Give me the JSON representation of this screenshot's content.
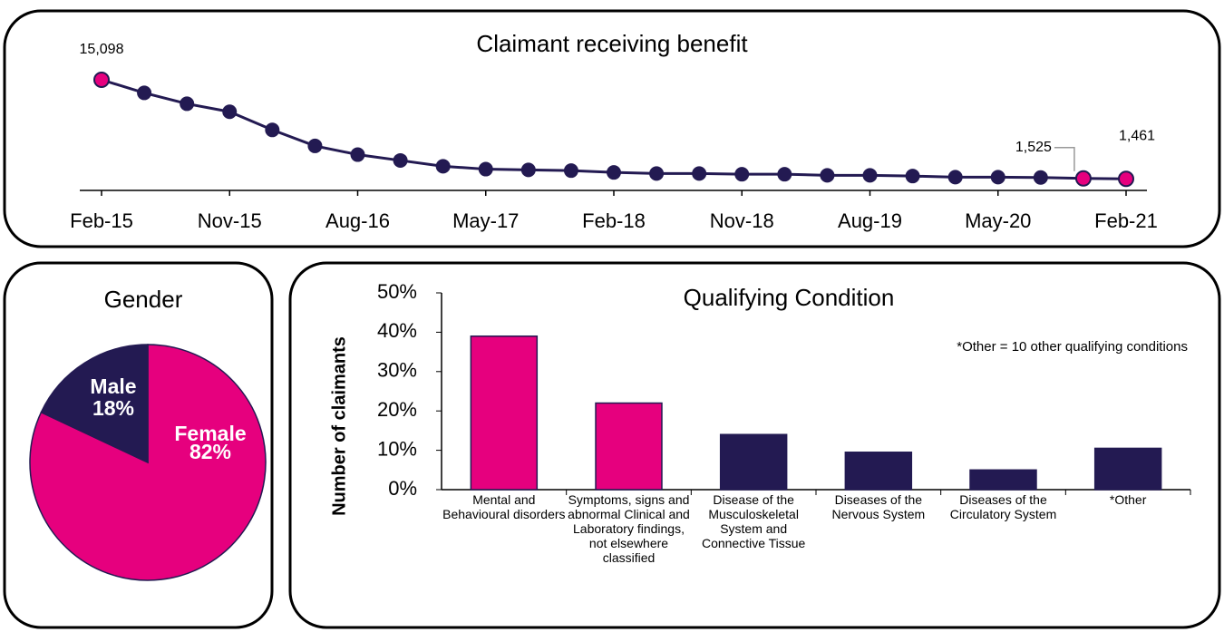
{
  "chart_data": [
    {
      "type": "line",
      "title": "Claimant receiving benefit",
      "categories": [
        "Feb-15",
        null,
        null,
        "Nov-15",
        null,
        null,
        "Aug-16",
        null,
        null,
        "May-17",
        null,
        null,
        "Feb-18",
        null,
        null,
        "Nov-18",
        null,
        null,
        "Aug-19",
        null,
        null,
        "May-20",
        null,
        null,
        "Feb-21"
      ],
      "values": [
        15098,
        13300,
        11800,
        10700,
        8200,
        6000,
        4800,
        4000,
        3200,
        2800,
        2700,
        2600,
        2350,
        2200,
        2200,
        2100,
        2100,
        1950,
        1950,
        1850,
        1700,
        1700,
        1650,
        1525,
        1461
      ],
      "value_labels": [
        "15,098",
        null,
        null,
        null,
        null,
        null,
        null,
        null,
        null,
        null,
        null,
        null,
        null,
        null,
        null,
        null,
        null,
        null,
        null,
        null,
        null,
        null,
        null,
        "1,525",
        "1,461"
      ],
      "color": "#231a52",
      "highlight_color": "#e6007e"
    },
    {
      "type": "pie",
      "title": "Gender",
      "categories": [
        "Female",
        "Male"
      ],
      "values": [
        82,
        18
      ],
      "value_labels": [
        "82%",
        "18%"
      ],
      "colors": [
        "#e6007e",
        "#231a52"
      ]
    },
    {
      "type": "bar",
      "title": "Qualifying Condition",
      "ylabel": "Number of claimants",
      "annotation": "*Other = 10 other qualifying conditions",
      "categories": [
        "Mental and Behavioural disorders",
        "Symptoms, signs and abnormal Clinical and Laboratory findings, not elsewhere classified",
        "Disease of the Musculoskeletal System and Connective Tissue",
        "Diseases of the Nervous System",
        "Diseases of the Circulatory System",
        "*Other"
      ],
      "values": [
        39,
        22,
        14,
        9.5,
        5,
        10.5
      ],
      "colors": [
        "#e6007e",
        "#e6007e",
        "#231a52",
        "#231a52",
        "#231a52",
        "#231a52"
      ],
      "ylim": [
        0,
        50
      ],
      "yticks": [
        {
          "value": 0,
          "label": "0%"
        },
        {
          "value": 10,
          "label": "10%"
        },
        {
          "value": 20,
          "label": "20%"
        },
        {
          "value": 30,
          "label": "30%"
        },
        {
          "value": 40,
          "label": "40%"
        },
        {
          "value": 50,
          "label": "50%"
        }
      ]
    }
  ]
}
